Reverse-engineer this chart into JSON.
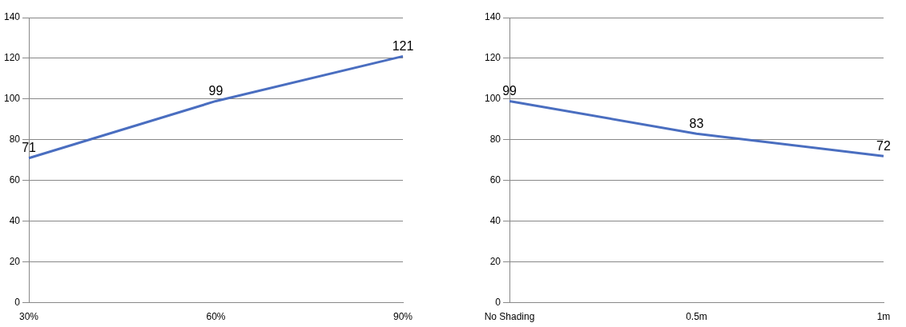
{
  "chart_data": [
    {
      "type": "line",
      "categories": [
        "30%",
        "60%",
        "90%"
      ],
      "values": [
        71,
        99,
        121
      ],
      "color": "#4a6ec0",
      "ylim": [
        0,
        140
      ],
      "yticks": [
        0,
        20,
        40,
        60,
        80,
        100,
        120,
        140
      ],
      "grid": "y",
      "data_labels": true,
      "marker": "none"
    },
    {
      "type": "line",
      "categories": [
        "No Shading",
        "0.5m",
        "1m"
      ],
      "values": [
        99,
        83,
        72
      ],
      "color": "#4a6ec0",
      "ylim": [
        0,
        140
      ],
      "yticks": [
        0,
        20,
        40,
        60,
        80,
        100,
        120,
        140
      ],
      "grid": "y",
      "data_labels": true,
      "marker": "none"
    }
  ]
}
